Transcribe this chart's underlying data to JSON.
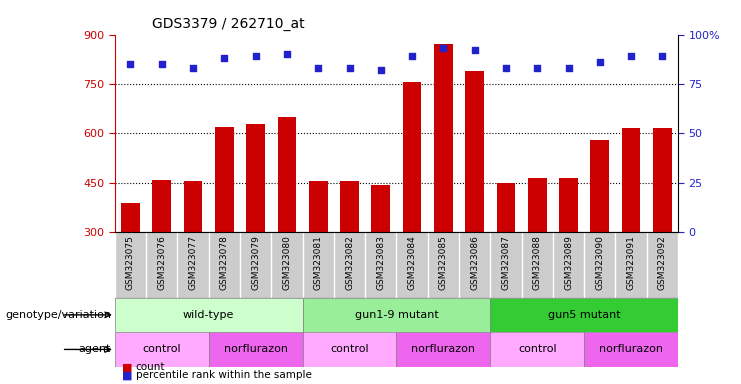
{
  "title": "GDS3379 / 262710_at",
  "samples": [
    "GSM323075",
    "GSM323076",
    "GSM323077",
    "GSM323078",
    "GSM323079",
    "GSM323080",
    "GSM323081",
    "GSM323082",
    "GSM323083",
    "GSM323084",
    "GSM323085",
    "GSM323086",
    "GSM323087",
    "GSM323088",
    "GSM323089",
    "GSM323090",
    "GSM323091",
    "GSM323092"
  ],
  "counts": [
    390,
    460,
    455,
    620,
    630,
    650,
    455,
    455,
    445,
    755,
    870,
    790,
    450,
    465,
    465,
    580,
    615,
    615
  ],
  "percentile_ranks": [
    85,
    85,
    83,
    88,
    89,
    90,
    83,
    83,
    82,
    89,
    93,
    92,
    83,
    83,
    83,
    86,
    89,
    89
  ],
  "ylim_left": [
    300,
    900
  ],
  "ylim_right": [
    0,
    100
  ],
  "yticks_left": [
    300,
    450,
    600,
    750,
    900
  ],
  "yticks_right": [
    0,
    25,
    50,
    75,
    100
  ],
  "ytick_right_labels": [
    "0",
    "25",
    "50",
    "75",
    "100%"
  ],
  "bar_color": "#cc0000",
  "dot_color": "#2222cc",
  "grid_dotted_at": [
    450,
    600,
    750
  ],
  "bg_color": "#ffffff",
  "label_bg_color": "#cccccc",
  "genotype_groups": [
    {
      "label": "wild-type",
      "start": 0,
      "end": 6,
      "color": "#ccffcc"
    },
    {
      "label": "gun1-9 mutant",
      "start": 6,
      "end": 12,
      "color": "#99ee99"
    },
    {
      "label": "gun5 mutant",
      "start": 12,
      "end": 18,
      "color": "#33cc33"
    }
  ],
  "agent_groups": [
    {
      "label": "control",
      "start": 0,
      "end": 3,
      "color": "#ffaaff"
    },
    {
      "label": "norflurazon",
      "start": 3,
      "end": 6,
      "color": "#ee66ee"
    },
    {
      "label": "control",
      "start": 6,
      "end": 9,
      "color": "#ffaaff"
    },
    {
      "label": "norflurazon",
      "start": 9,
      "end": 12,
      "color": "#ee66ee"
    },
    {
      "label": "control",
      "start": 12,
      "end": 15,
      "color": "#ffaaff"
    },
    {
      "label": "norflurazon",
      "start": 15,
      "end": 18,
      "color": "#ee66ee"
    }
  ]
}
